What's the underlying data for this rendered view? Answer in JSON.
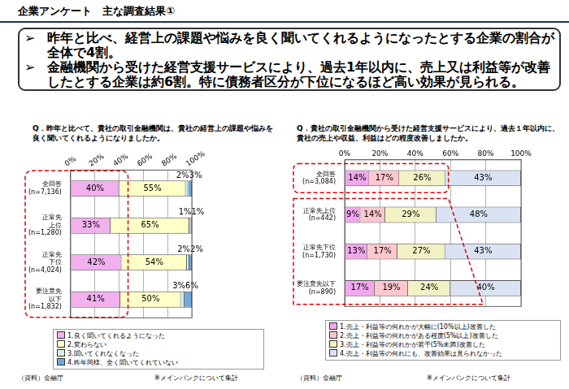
{
  "header": {
    "title": "企業アンケート　主な調査結果①"
  },
  "summary": [
    "昨年と比べ、経営上の課題や悩みを良く聞いてくれるようになったとする企業の割合が全体で4割。",
    "金融機関から受けた経営支援サービスにより、過去1年以内に、売上又は利益等が改善したとする企業は約6割。特に債務者区分が下位になるほど高い効果が見られる。"
  ],
  "chart_data": [
    {
      "type": "bar",
      "title": "Q．昨年と比べて、貴社の取引金融機関は、貴社の経営上の課題や悩みを良く聞いてくれるようになりましたか。",
      "orientation": "horizontal",
      "stacked": true,
      "data_labels": true,
      "grid": true,
      "legend": "bottom",
      "categories": [
        [
          "全回答",
          "(n=7,136)"
        ],
        [
          "正常先",
          "上位",
          "(n=1,280)"
        ],
        [
          "正常先",
          "下位",
          "(n=4,024)"
        ],
        [
          "要注意先",
          "以下",
          "(n=1,832)"
        ]
      ],
      "series": [
        {
          "name": "1.良く聞いてくれるようになった",
          "color": "#f2b0ee",
          "values": [
            40,
            33,
            42,
            41
          ],
          "value_labels": [
            "40%",
            "33%",
            "42%",
            "41%"
          ]
        },
        {
          "name": "2.変わらない",
          "color": "#ffffc8",
          "values": [
            55,
            65,
            54,
            50
          ],
          "value_labels": [
            "55%",
            "65%",
            "54%",
            "50%"
          ]
        },
        {
          "name": "3.聞いてくれなくなった",
          "color": "#d6f0e2",
          "values": [
            2,
            1,
            2,
            3
          ],
          "value_labels": [
            "2%",
            "1%",
            "2%",
            "3%"
          ]
        },
        {
          "name": "4.昨年同様、全く聞いてくれていない",
          "color": "#6fa8dc",
          "values": [
            3,
            1,
            2,
            6
          ],
          "value_labels": [
            "3%",
            "1%",
            "2%",
            "6%"
          ]
        }
      ],
      "xlim": [
        0,
        100
      ],
      "xticks": [
        {
          "value": 0,
          "label": "0%"
        },
        {
          "value": 20,
          "label": "20%"
        },
        {
          "value": 40,
          "label": "40%"
        },
        {
          "value": 60,
          "label": "60%"
        },
        {
          "value": 80,
          "label": "80%"
        },
        {
          "value": 100,
          "label": "100%"
        }
      ],
      "source": "（資料）金融庁",
      "note": "※メインバンクについて集計"
    },
    {
      "type": "bar",
      "title": "Q．貴社の取引金融機関から受けた経営支援サービスにより、過去１年以内に、貴社の売上や収益、利益はどの程度改善しましたか。",
      "orientation": "horizontal",
      "stacked": true,
      "data_labels": true,
      "grid": true,
      "legend": "bottom",
      "categories": [
        [
          "全回答",
          "(n=3,084)"
        ],
        [
          "正常先上位",
          "(n=442)"
        ],
        [
          "正常先下位",
          "(n=1,730)"
        ],
        [
          "要注意先以下",
          "(n=890)"
        ]
      ],
      "series": [
        {
          "name": "1.売上・利益等の何れかが大幅に(10%以上)改善した",
          "color": "#f2a7ee",
          "values": [
            14,
            9,
            13,
            17
          ],
          "value_labels": [
            "14%",
            "9%",
            "13%",
            "17%"
          ]
        },
        {
          "name": "2.売上・利益等の何れかがある程度(5%以上)改善した",
          "color": "#ffc7ce",
          "values": [
            17,
            14,
            17,
            19
          ],
          "value_labels": [
            "17%",
            "14%",
            "17%",
            "19%"
          ]
        },
        {
          "name": "3.売上・利益等の何れかが若干(5%未満)改善した",
          "color": "#f2f2c4",
          "values": [
            26,
            29,
            27,
            24
          ],
          "value_labels": [
            "26%",
            "29%",
            "27%",
            "24%"
          ]
        },
        {
          "name": "4.売上・利益等の何れにも、改善効果は見られなかった",
          "color": "#dae3f3",
          "values": [
            43,
            48,
            43,
            40
          ],
          "value_labels": [
            "43%",
            "48%",
            "43%",
            "40%"
          ]
        }
      ],
      "xlim": [
        0,
        100
      ],
      "xticks": [
        {
          "value": 0,
          "label": "0%"
        },
        {
          "value": 20,
          "label": "20%"
        },
        {
          "value": 40,
          "label": "40%"
        },
        {
          "value": 60,
          "label": "60%"
        },
        {
          "value": 80,
          "label": "80%"
        },
        {
          "value": 100,
          "label": "100%"
        }
      ],
      "source": "（資料）金融庁",
      "note": "※メインバンクについて集計"
    }
  ]
}
